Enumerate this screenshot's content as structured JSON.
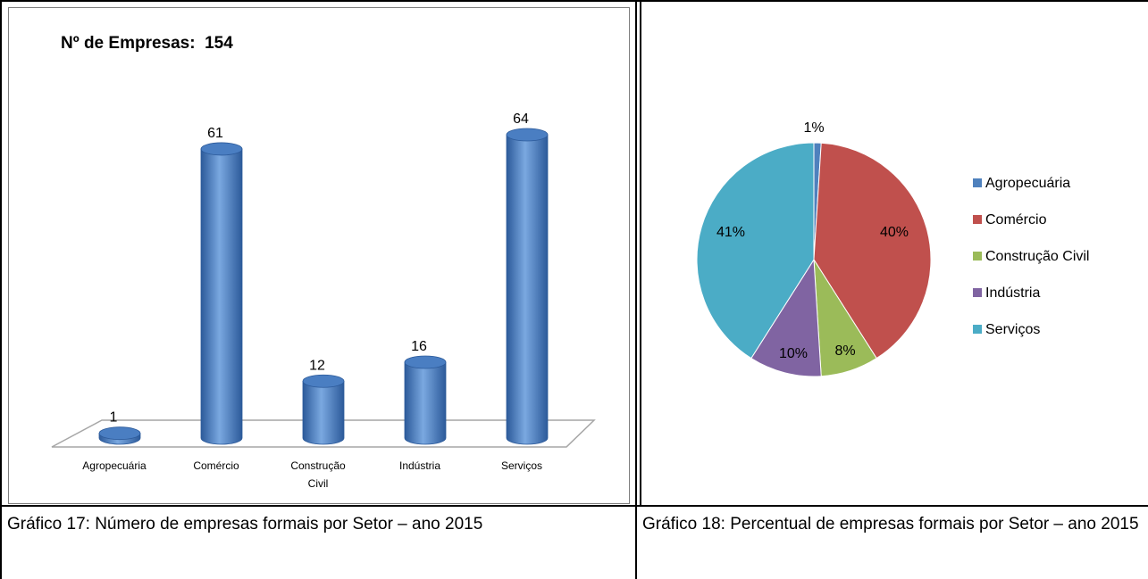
{
  "left_chart": {
    "title": "Nº de Empresas:  154",
    "caption": "Gráfico 17: Número de empresas formais por Setor – ano 2015"
  },
  "right_chart": {
    "caption": "Gráfico 18: Percentual de empresas formais por Setor – ano 2015"
  },
  "colors": {
    "bar": "#4a7ec2",
    "bar_dark": "#2c5a9a",
    "bar_light": "#7aa8e0",
    "pie": [
      "#4f81bd",
      "#c0504d",
      "#9bbb59",
      "#8064a2",
      "#4bacc6"
    ]
  },
  "chart_data": [
    {
      "type": "bar",
      "title": "Nº de Empresas:  154",
      "categories": [
        "Agropecuária",
        "Comércio",
        "Construção Civil",
        "Indústria",
        "Serviços"
      ],
      "category_lines": [
        [
          "Agropecuária"
        ],
        [
          "Comércio"
        ],
        [
          "Construção",
          "Civil"
        ],
        [
          "Indústria"
        ],
        [
          "Serviços"
        ]
      ],
      "values": [
        1,
        61,
        12,
        16,
        64
      ],
      "data_labels": [
        "1",
        "61",
        "12",
        "16",
        "64"
      ],
      "ylim": [
        0,
        64
      ],
      "grid": false,
      "xlabel": "",
      "ylabel": ""
    },
    {
      "type": "pie",
      "categories": [
        "Agropecuária",
        "Comércio",
        "Construção Civil",
        "Indústria",
        "Serviços"
      ],
      "values": [
        1,
        40,
        8,
        10,
        41
      ],
      "data_labels": [
        "1%",
        "40%",
        "8%",
        "10%",
        "41%"
      ],
      "legend": "right"
    }
  ]
}
